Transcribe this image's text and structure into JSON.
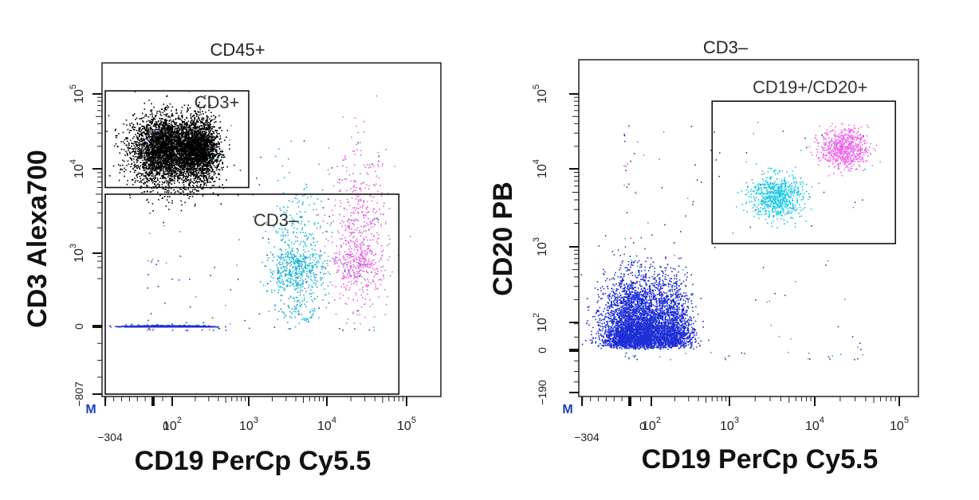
{
  "figure": {
    "m_marker": "M"
  },
  "chart_data": [
    {
      "type": "scatter",
      "title": "CD45+",
      "xlabel": "CD19 PerCp Cy5.5",
      "ylabel": "CD3 Alexa700",
      "x_scale": "biexponential",
      "y_scale": "biexponential",
      "x_ticks": [
        {
          "label": "−304",
          "value": -304
        },
        {
          "label": "0",
          "value": 0
        },
        {
          "base": "10",
          "exp": "2",
          "value": 100
        },
        {
          "base": "10",
          "exp": "3",
          "value": 1000
        },
        {
          "base": "10",
          "exp": "4",
          "value": 10000
        },
        {
          "base": "10",
          "exp": "5",
          "value": 100000
        }
      ],
      "y_ticks": [
        {
          "label": "−807",
          "value": -807
        },
        {
          "label": "0",
          "value": 0
        },
        {
          "base": "10",
          "exp": "3",
          "value": 1000
        },
        {
          "base": "10",
          "exp": "4",
          "value": 10000
        },
        {
          "base": "10",
          "exp": "5",
          "value": 100000
        }
      ],
      "gates": [
        {
          "label": "CD3+",
          "x_range": [
            -304,
            1000
          ],
          "y_range": [
            6000,
            110000
          ]
        },
        {
          "label": "CD3–",
          "x_range": [
            -304,
            80000
          ],
          "y_range": [
            -807,
            5000
          ]
        }
      ],
      "series": [
        {
          "name": "CD3+ T cells",
          "color": "#000000",
          "x_center": 120,
          "x_spread": 120,
          "y_center": 18000,
          "y_spread": 0.22,
          "density": "very high"
        },
        {
          "name": "CD19–/CD20– cells",
          "color": "#1f2fd6",
          "x_center": 60,
          "x_spread": 100,
          "y_center": 0,
          "y_spread": 0.25,
          "density": "high"
        },
        {
          "name": "CD19+ cells (low)",
          "color": "#18b4d6",
          "x_center": 4000,
          "x_spread": 0.18,
          "y_center": 400,
          "y_spread": 0.55,
          "density": "medium"
        },
        {
          "name": "CD19+ cells (high)",
          "color": "#e066dd",
          "x_center": 25000,
          "x_spread": 0.18,
          "y_center": 1000,
          "y_spread": 0.6,
          "density": "medium"
        }
      ]
    },
    {
      "type": "scatter",
      "title": "CD3–",
      "xlabel": "CD19 PerCp Cy5.5",
      "ylabel": "CD20 PB",
      "x_scale": "biexponential",
      "y_scale": "biexponential",
      "x_ticks": [
        {
          "label": "−304",
          "value": -304
        },
        {
          "label": "0",
          "value": 0
        },
        {
          "base": "10",
          "exp": "2",
          "value": 100
        },
        {
          "base": "10",
          "exp": "3",
          "value": 1000
        },
        {
          "base": "10",
          "exp": "4",
          "value": 10000
        },
        {
          "base": "10",
          "exp": "5",
          "value": 100000
        }
      ],
      "y_ticks": [
        {
          "label": "−190",
          "value": -190
        },
        {
          "label": "0",
          "value": 0
        },
        {
          "base": "10",
          "exp": "2",
          "value": 100
        },
        {
          "base": "10",
          "exp": "3",
          "value": 1000
        },
        {
          "base": "10",
          "exp": "4",
          "value": 10000
        },
        {
          "base": "10",
          "exp": "5",
          "value": 100000
        }
      ],
      "gates": [
        {
          "label": "CD19+/CD20+",
          "x_range": [
            600,
            90000
          ],
          "y_range": [
            1100,
            80000
          ]
        }
      ],
      "series": [
        {
          "name": "CD19–/CD20– cells",
          "color": "#1f2fd6",
          "x_center": 60,
          "x_spread": 110,
          "y_center": 80,
          "y_spread": 0.35,
          "density": "very high"
        },
        {
          "name": "CD19+/CD20+ (low)",
          "color": "#18c8e6",
          "x_center": 3500,
          "x_spread": 0.15,
          "y_center": 4500,
          "y_spread": 0.14,
          "density": "medium"
        },
        {
          "name": "CD19+/CD20+ (high)",
          "color": "#ee66ea",
          "x_center": 22000,
          "x_spread": 0.14,
          "y_center": 19000,
          "y_spread": 0.13,
          "density": "medium"
        }
      ]
    }
  ]
}
